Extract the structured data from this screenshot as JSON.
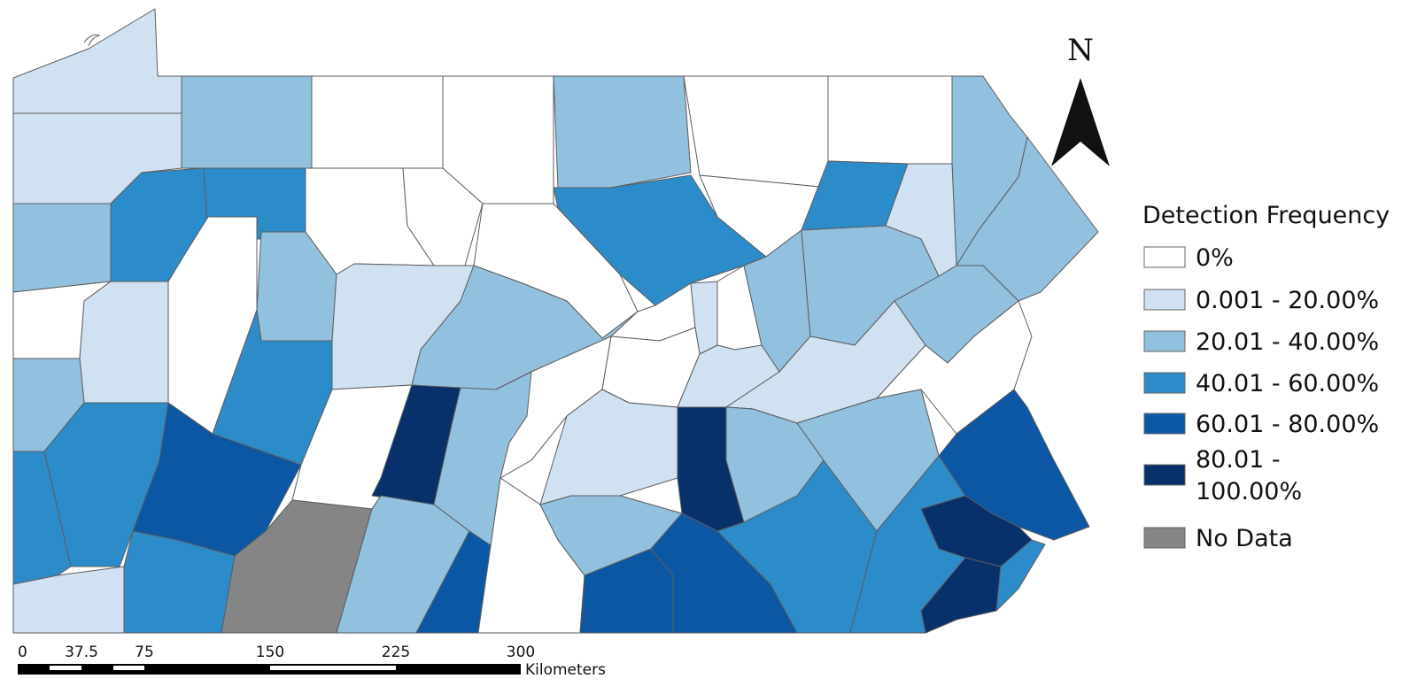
{
  "north_arrow": {
    "letter": "N"
  },
  "legend": {
    "title": "Detection Frequency",
    "classes": [
      {
        "lines": [
          "0%"
        ],
        "color": "#ffffff"
      },
      {
        "lines": [
          "0.001 - 20.00%"
        ],
        "color": "#d0e1f2"
      },
      {
        "lines": [
          "20.01 - 40.00%"
        ],
        "color": "#92c0df"
      },
      {
        "lines": [
          "40.01 - 60.00%"
        ],
        "color": "#2c8cca"
      },
      {
        "lines": [
          "60.01 - 80.00%"
        ],
        "color": "#0c57a3"
      },
      {
        "lines": [
          "80.01 -",
          "100.00%"
        ],
        "color": "#08306b"
      },
      {
        "lines": [
          "No Data"
        ],
        "color": "#858585"
      }
    ]
  },
  "scale_bar": {
    "ticks": [
      "0",
      "37.5",
      "75",
      "150",
      "225",
      "300"
    ],
    "unit": "Kilometers"
  },
  "map": {
    "counties": [
      {
        "class": 1
      },
      {
        "class": 1
      },
      {
        "class": 2
      },
      {
        "class": 0
      },
      {
        "class": 0
      },
      {
        "class": 2
      },
      {
        "class": 0
      },
      {
        "class": 0
      },
      {
        "class": 2
      },
      {
        "class": 2
      },
      {
        "class": 3
      },
      {
        "class": 3
      },
      {
        "class": 0
      },
      {
        "class": 0
      },
      {
        "class": 0
      },
      {
        "class": 3
      },
      {
        "class": 0
      },
      {
        "class": 3
      },
      {
        "class": 1
      },
      {
        "class": 2
      },
      {
        "class": 0
      },
      {
        "class": 1
      },
      {
        "class": 0
      },
      {
        "class": 2
      },
      {
        "class": 1
      },
      {
        "class": 2
      },
      {
        "class": 0
      },
      {
        "class": 1
      },
      {
        "class": 0
      },
      {
        "class": 2
      },
      {
        "class": 2
      },
      {
        "class": 2
      },
      {
        "class": 2
      },
      {
        "class": 3
      },
      {
        "class": 4
      },
      {
        "class": 3
      },
      {
        "class": 0
      },
      {
        "class": 5
      },
      {
        "class": 2
      },
      {
        "class": 0
      },
      {
        "class": 0
      },
      {
        "class": 1
      },
      {
        "class": 1
      },
      {
        "class": 0
      },
      {
        "class": 3
      },
      {
        "class": 1
      },
      {
        "class": 3
      },
      {
        "class": 6
      },
      {
        "class": 2
      },
      {
        "class": 4
      },
      {
        "class": 0
      },
      {
        "class": 0
      },
      {
        "class": 2
      },
      {
        "class": 1
      },
      {
        "class": 5
      },
      {
        "class": 2
      },
      {
        "class": 3
      },
      {
        "class": 2
      },
      {
        "class": 4
      },
      {
        "class": 4
      },
      {
        "class": 4
      },
      {
        "class": 3
      },
      {
        "class": 5
      },
      {
        "class": 5
      },
      {
        "class": 3
      }
    ]
  }
}
